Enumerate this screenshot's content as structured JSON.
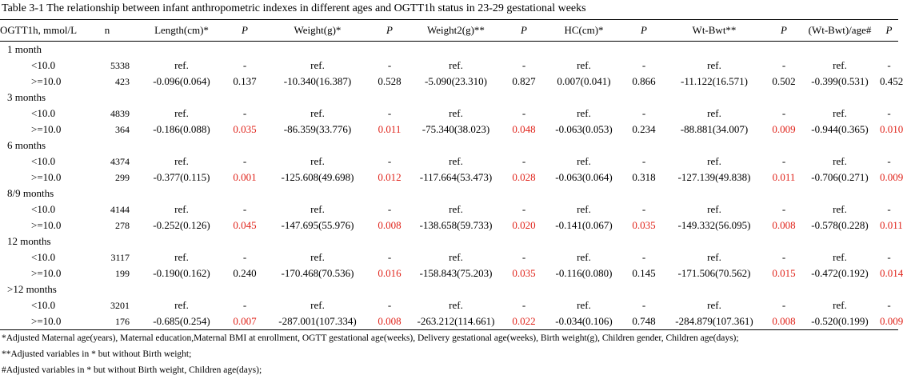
{
  "title": "Table 3-1 The relationship between infant anthropometric indexes  in different ages and OGTT1h status in 23-29 gestational weeks",
  "headers": [
    "OGTT1h, mmol/L",
    "n",
    "Length(cm)*",
    "P",
    "Weight(g)*",
    "P",
    "Weight2(g)**",
    "P",
    "HC(cm)*",
    "P",
    "Wt-Bwt**",
    "P",
    "(Wt-Bwt)/age#",
    "P"
  ],
  "accent_color": "#e0231a",
  "groups": [
    {
      "label": "1 month",
      "rows": [
        {
          "c": [
            "<10.0",
            "5338",
            "ref.",
            "-",
            "ref.",
            "-",
            "ref.",
            "-",
            "ref.",
            "-",
            "ref.",
            "-",
            "ref.",
            "-"
          ],
          "red": []
        },
        {
          "c": [
            ">=10.0",
            "423",
            "-0.096(0.064)",
            "0.137",
            "-10.340(16.387)",
            "0.528",
            "-5.090(23.310)",
            "0.827",
            "0.007(0.041)",
            "0.866",
            "-11.122(16.571)",
            "0.502",
            "-0.399(0.531)",
            "0.452"
          ],
          "red": []
        }
      ]
    },
    {
      "label": "3 months",
      "rows": [
        {
          "c": [
            "<10.0",
            "4839",
            "ref.",
            "-",
            "ref.",
            "-",
            "ref.",
            "-",
            "ref.",
            "-",
            "ref.",
            "-",
            "ref.",
            "-"
          ],
          "red": []
        },
        {
          "c": [
            ">=10.0",
            "364",
            "-0.186(0.088)",
            "0.035",
            "-86.359(33.776)",
            "0.011",
            "-75.340(38.023)",
            "0.048",
            "-0.063(0.053)",
            "0.234",
            "-88.881(34.007)",
            "0.009",
            "-0.944(0.365)",
            "0.010"
          ],
          "red": [
            3,
            5,
            7,
            11,
            13
          ]
        }
      ]
    },
    {
      "label": "6 months",
      "rows": [
        {
          "c": [
            "<10.0",
            "4374",
            "ref.",
            "-",
            "ref.",
            "-",
            "ref.",
            "-",
            "ref.",
            "-",
            "ref.",
            "-",
            "ref.",
            "-"
          ],
          "red": []
        },
        {
          "c": [
            ">=10.0",
            "299",
            "-0.377(0.115)",
            "0.001",
            "-125.608(49.698)",
            "0.012",
            "-117.664(53.473)",
            "0.028",
            "-0.063(0.064)",
            "0.318",
            "-127.139(49.838)",
            "0.011",
            "-0.706(0.271)",
            "0.009"
          ],
          "red": [
            3,
            5,
            7,
            11,
            13
          ]
        }
      ]
    },
    {
      "label": "8/9 months",
      "rows": [
        {
          "c": [
            "<10.0",
            "4144",
            "ref.",
            "-",
            "ref.",
            "-",
            "ref.",
            "-",
            "ref.",
            "-",
            "ref.",
            "-",
            "ref.",
            "-"
          ],
          "red": []
        },
        {
          "c": [
            ">=10.0",
            "278",
            "-0.252(0.126)",
            "0.045",
            "-147.695(55.976)",
            "0.008",
            "-138.658(59.733)",
            "0.020",
            "-0.141(0.067)",
            "0.035",
            "-149.332(56.095)",
            "0.008",
            "-0.578(0.228)",
            "0.011"
          ],
          "red": [
            3,
            5,
            7,
            9,
            11,
            13
          ]
        }
      ]
    },
    {
      "label": "12 months",
      "rows": [
        {
          "c": [
            "<10.0",
            "3117",
            "ref.",
            "-",
            "ref.",
            "-",
            "ref.",
            "-",
            "ref.",
            "-",
            "ref.",
            "-",
            "ref.",
            "-"
          ],
          "red": []
        },
        {
          "c": [
            ">=10.0",
            "199",
            "-0.190(0.162)",
            "0.240",
            "-170.468(70.536)",
            "0.016",
            "-158.843(75.203)",
            "0.035",
            "-0.116(0.080)",
            "0.145",
            "-171.506(70.562)",
            "0.015",
            "-0.472(0.192)",
            "0.014"
          ],
          "red": [
            5,
            7,
            11,
            13
          ]
        }
      ]
    },
    {
      "label": ">12 months",
      "rows": [
        {
          "c": [
            "<10.0",
            "3201",
            "ref.",
            "-",
            "ref.",
            "-",
            "ref.",
            "-",
            "ref.",
            "-",
            "ref.",
            "-",
            "ref.",
            "-"
          ],
          "red": []
        },
        {
          "c": [
            ">=10.0",
            "176",
            "-0.685(0.254)",
            "0.007",
            "-287.001(107.334)",
            "0.008",
            "-263.212(114.661)",
            "0.022",
            "-0.034(0.106)",
            "0.748",
            "-284.879(107.361)",
            "0.008",
            "-0.520(0.199)",
            "0.009"
          ],
          "red": [
            3,
            5,
            7,
            11,
            13
          ]
        }
      ]
    }
  ],
  "notes": [
    "*Adjusted Maternal age(years), Maternal education,Maternal BMI at enrollment, OGTT gestational age(weeks), Delivery gestational age(weeks), Birth weight(g), Children gender, Children age(days);",
    "**Adjusted variables in *  but without Birth weight;",
    "#Adjusted variables in *  but without Birth weight, Children age(days);"
  ]
}
